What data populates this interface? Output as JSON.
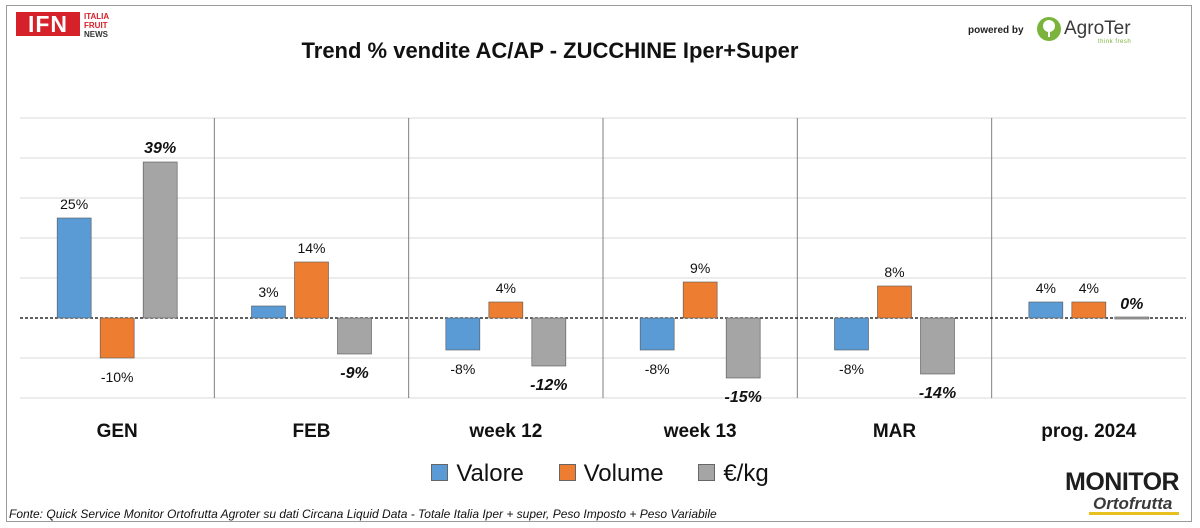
{
  "logo_ifn": {
    "mark": "IFN",
    "lines": [
      "ITALIA",
      "FRUIT",
      "NEWS"
    ]
  },
  "title": "Trend % vendite AC/AP - ZUCCHINE Iper+Super",
  "powered_by": {
    "label": "powered by",
    "brand": "AgroTer",
    "tagline": "think fresh"
  },
  "source_note": "Fonte: Quick Service Monitor Ortofrutta Agroter su dati Circana Liquid Data - Totale Italia Iper + super, Peso Imposto + Peso Variabile",
  "logo_monitor": {
    "top": "MONITOR",
    "bottom": "Ortofrutta"
  },
  "chart_data": {
    "type": "bar",
    "categories": [
      "GEN",
      "FEB",
      "week 12",
      "week 13",
      "MAR",
      "prog. 2024"
    ],
    "series": [
      {
        "name": "Valore",
        "color": "#5b9bd5",
        "values": [
          25,
          3,
          -8,
          -8,
          -8,
          4
        ],
        "labels": [
          "25%",
          "3%",
          "-8%",
          "-8%",
          "-8%",
          "4%"
        ],
        "label_style": "normal"
      },
      {
        "name": "Volume",
        "color": "#ed7d31",
        "values": [
          -10,
          14,
          4,
          9,
          8,
          4
        ],
        "labels": [
          "-10%",
          "14%",
          "4%",
          "9%",
          "8%",
          "4%"
        ],
        "label_style": "normal"
      },
      {
        "name": "€/kg",
        "color": "#a5a5a5",
        "values": [
          39,
          -9,
          -12,
          -15,
          -14,
          0
        ],
        "labels": [
          "39%",
          "-9%",
          "-12%",
          "-15%",
          "-14%",
          "0%"
        ],
        "label_style": "bold-italic"
      }
    ],
    "ylim": [
      -20,
      50
    ],
    "grid": true,
    "legend_position": "bottom",
    "zero_line": "dashed"
  }
}
